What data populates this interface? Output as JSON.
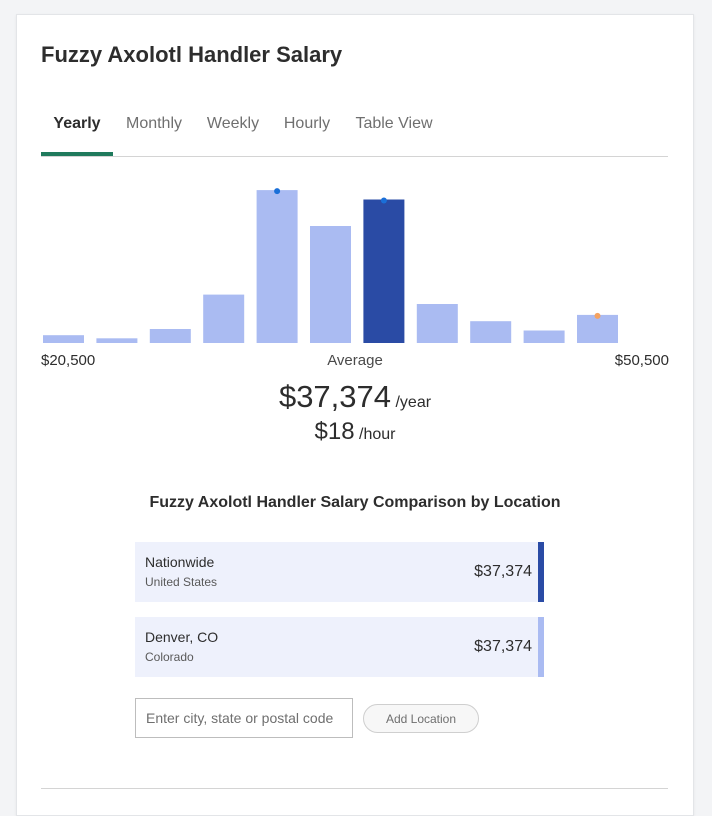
{
  "page": {
    "title": "Fuzzy Axolotl Handler Salary"
  },
  "tabs": [
    {
      "label": "Yearly",
      "active": true
    },
    {
      "label": "Monthly",
      "active": false
    },
    {
      "label": "Weekly",
      "active": false
    },
    {
      "label": "Hourly",
      "active": false
    },
    {
      "label": "Table View",
      "active": false
    }
  ],
  "chart_data": {
    "type": "bar",
    "title": "",
    "xlabel": "",
    "ylabel": "",
    "bins": 11,
    "range_min_label": "$20,500",
    "range_max_label": "$50,500",
    "center_label": "Average",
    "values": [
      5,
      3,
      9,
      31,
      98,
      75,
      92,
      25,
      14,
      8,
      18
    ],
    "ylim": [
      0,
      100
    ],
    "highlight_index": 6,
    "marker_indices": [
      4,
      6,
      10
    ],
    "colors": {
      "bar": "#aabbf2",
      "highlight": "#2a4ba5",
      "marker_blue": "#1a6fd8",
      "marker_orange": "#f4a261"
    },
    "grid": false,
    "legend": "none"
  },
  "summary": {
    "yearly_value": "$37,374",
    "yearly_unit": "/year",
    "hourly_value": "$18",
    "hourly_unit": "/hour"
  },
  "comparison": {
    "title": "Fuzzy Axolotl Handler Salary Comparison by Location",
    "rows": [
      {
        "name": "Nationwide",
        "sub": "United States",
        "value": "$37,374",
        "accent": "#2a4ba5"
      },
      {
        "name": "Denver, CO",
        "sub": "Colorado",
        "value": "$37,374",
        "accent": "#aabbf2"
      }
    ],
    "input_placeholder": "Enter city, state or postal code",
    "add_button_label": "Add Location"
  }
}
